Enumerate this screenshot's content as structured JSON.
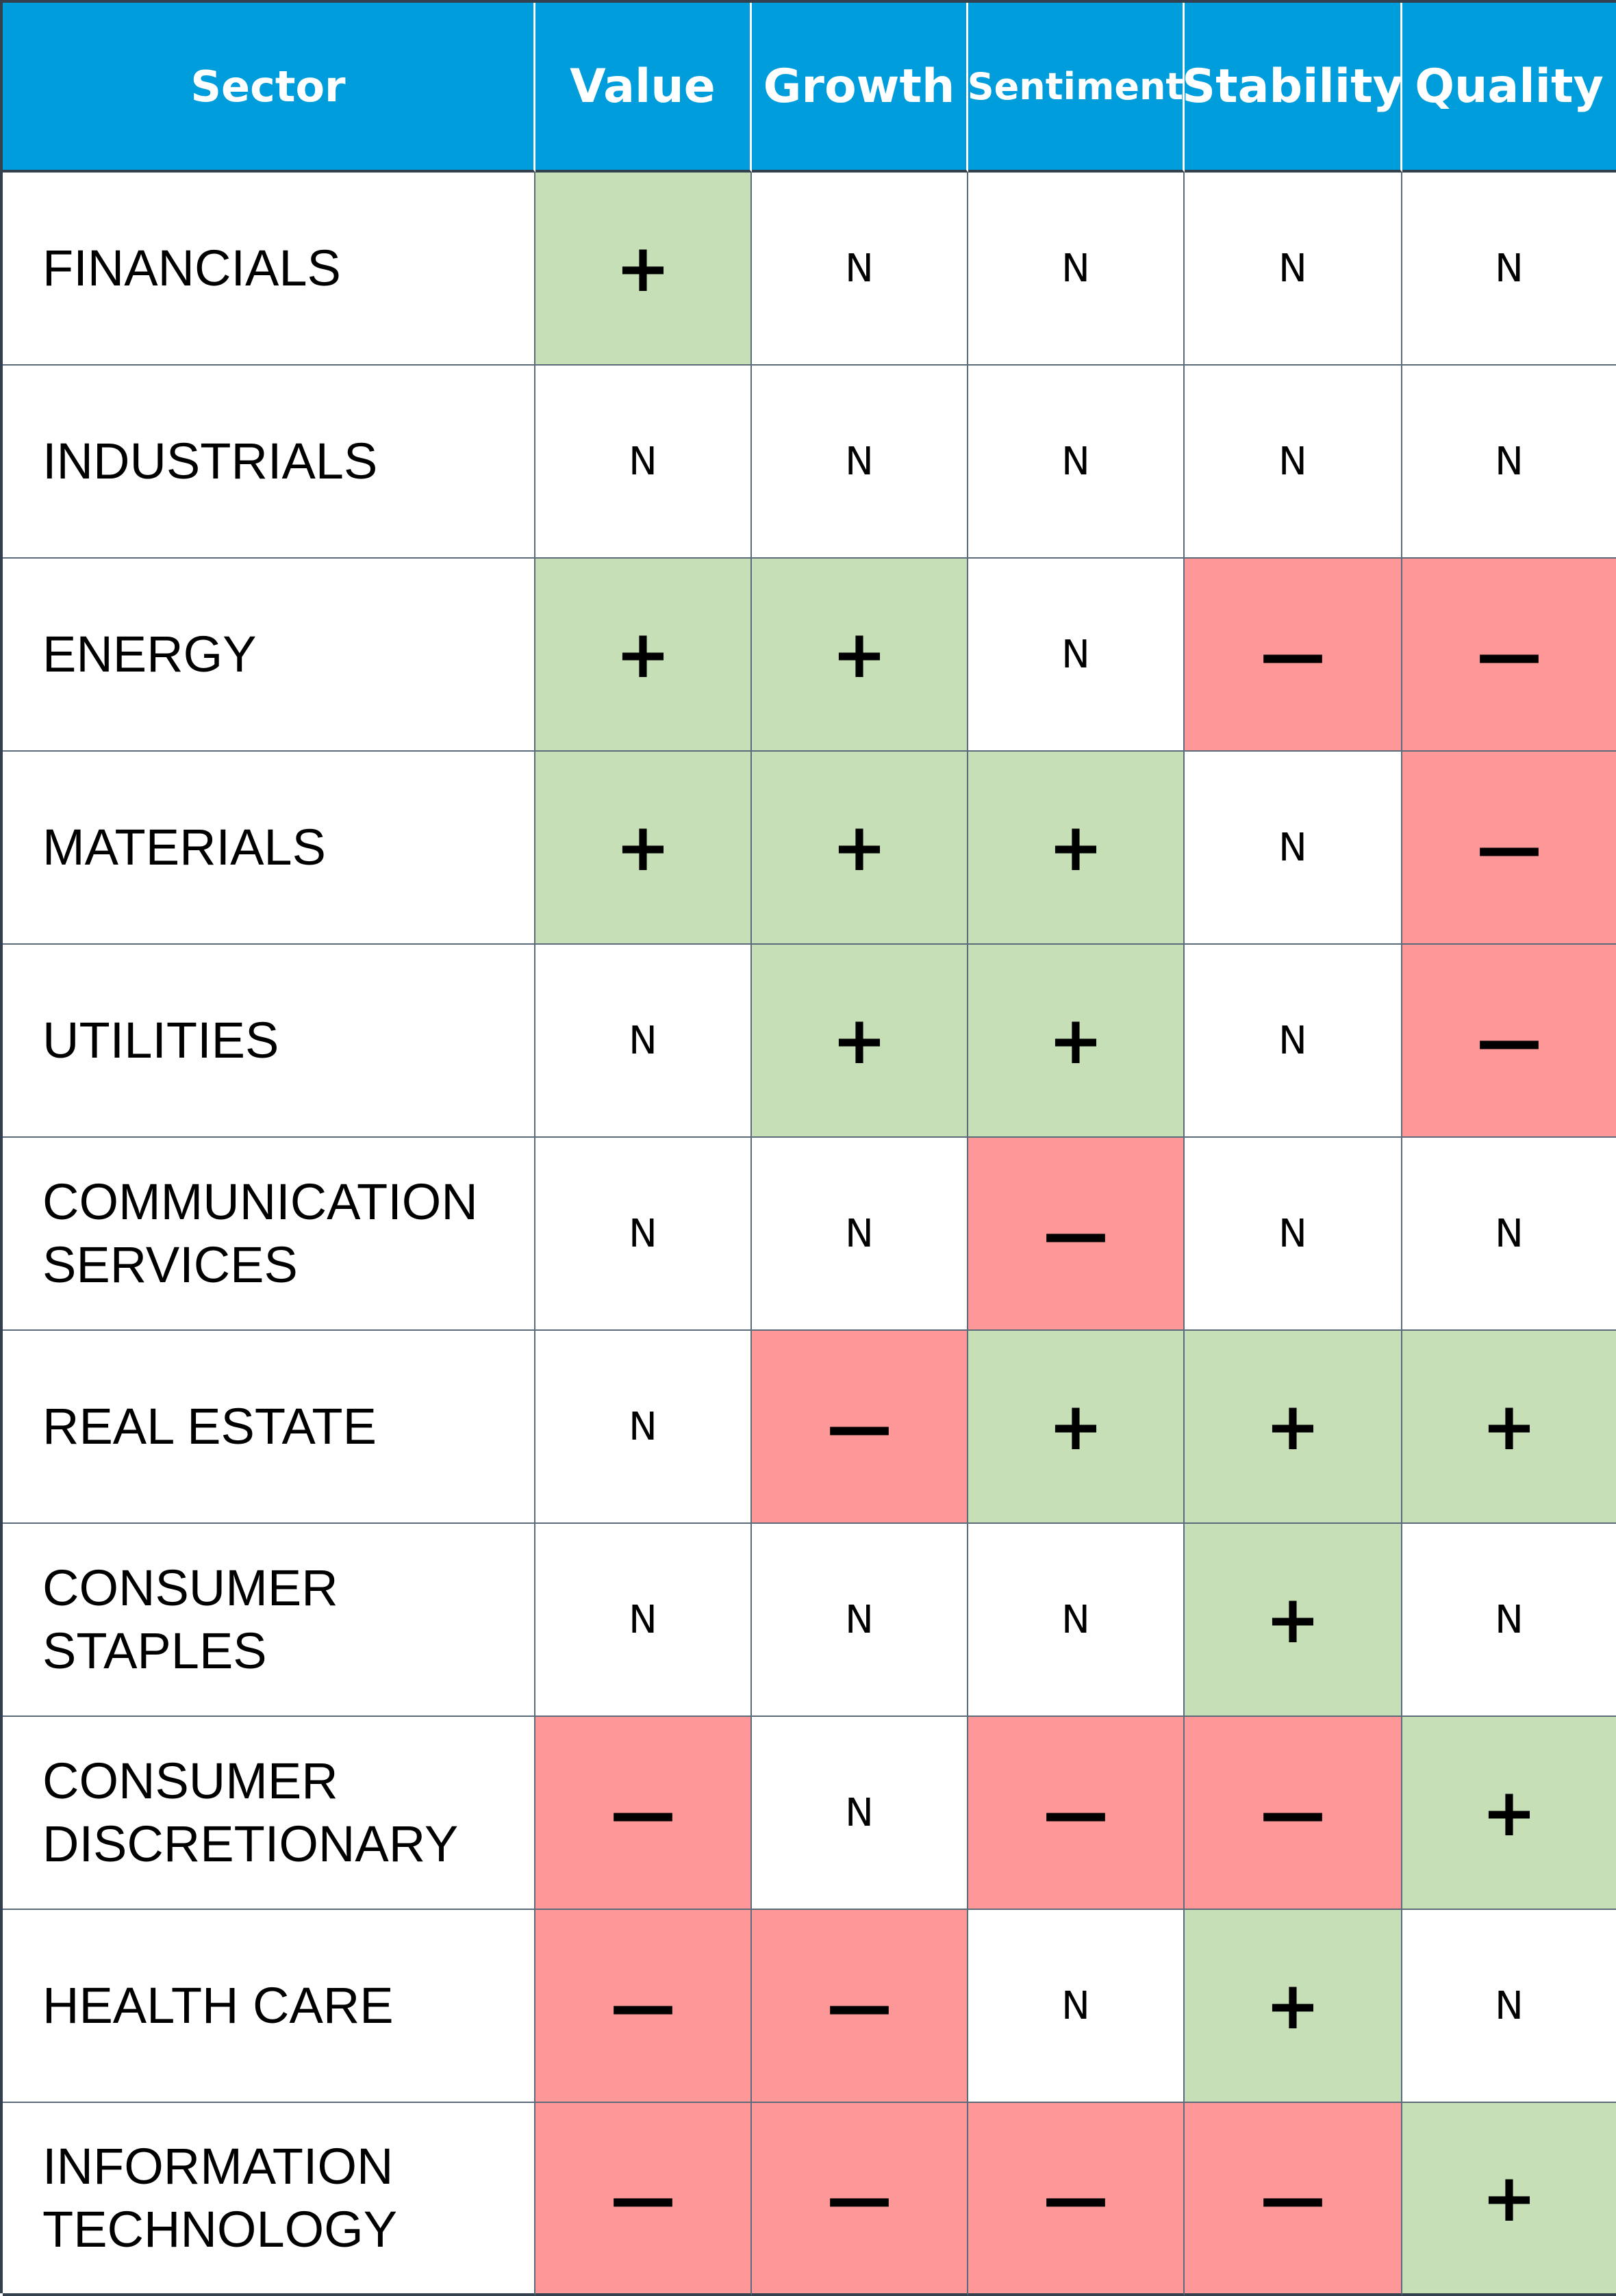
{
  "colors": {
    "header_bg": "#009ddc",
    "header_text": "#ffffff",
    "positive_bg": "#c6dfb6",
    "negative_bg": "#fe9898",
    "neutral_bg": "#ffffff",
    "grid_line": "#5c6b7a"
  },
  "table": {
    "headers": [
      "Sector",
      "Value",
      "Growth",
      "Sentiment",
      "Stability",
      "Quality"
    ],
    "rows": [
      {
        "sector": "FINANCIALS",
        "cells": [
          "+",
          "N",
          "N",
          "N",
          "N"
        ]
      },
      {
        "sector": "INDUSTRIALS",
        "cells": [
          "N",
          "N",
          "N",
          "N",
          "N"
        ]
      },
      {
        "sector": "ENERGY",
        "cells": [
          "+",
          "+",
          "N",
          "—",
          "—"
        ]
      },
      {
        "sector": "MATERIALS",
        "cells": [
          "+",
          "+",
          "+",
          "N",
          "—"
        ]
      },
      {
        "sector": "UTILITIES",
        "cells": [
          "N",
          "+",
          "+",
          "N",
          "—"
        ]
      },
      {
        "sector": "COMMUNICATION\nSERVICES",
        "cells": [
          "N",
          "N",
          "—",
          "N",
          "N"
        ]
      },
      {
        "sector": "REAL ESTATE",
        "cells": [
          "N",
          "—",
          "+",
          "+",
          "+"
        ]
      },
      {
        "sector": "CONSUMER\nSTAPLES",
        "cells": [
          "N",
          "N",
          "N",
          "+",
          "N"
        ]
      },
      {
        "sector": "CONSUMER\nDISCRETIONARY",
        "cells": [
          "—",
          "N",
          "—",
          "—",
          "+"
        ]
      },
      {
        "sector": "HEALTH CARE",
        "cells": [
          "—",
          "—",
          "N",
          "+",
          "N"
        ]
      },
      {
        "sector": "INFORMATION\nTECHNOLOGY",
        "cells": [
          "—",
          "—",
          "—",
          "—",
          "+"
        ]
      }
    ]
  }
}
